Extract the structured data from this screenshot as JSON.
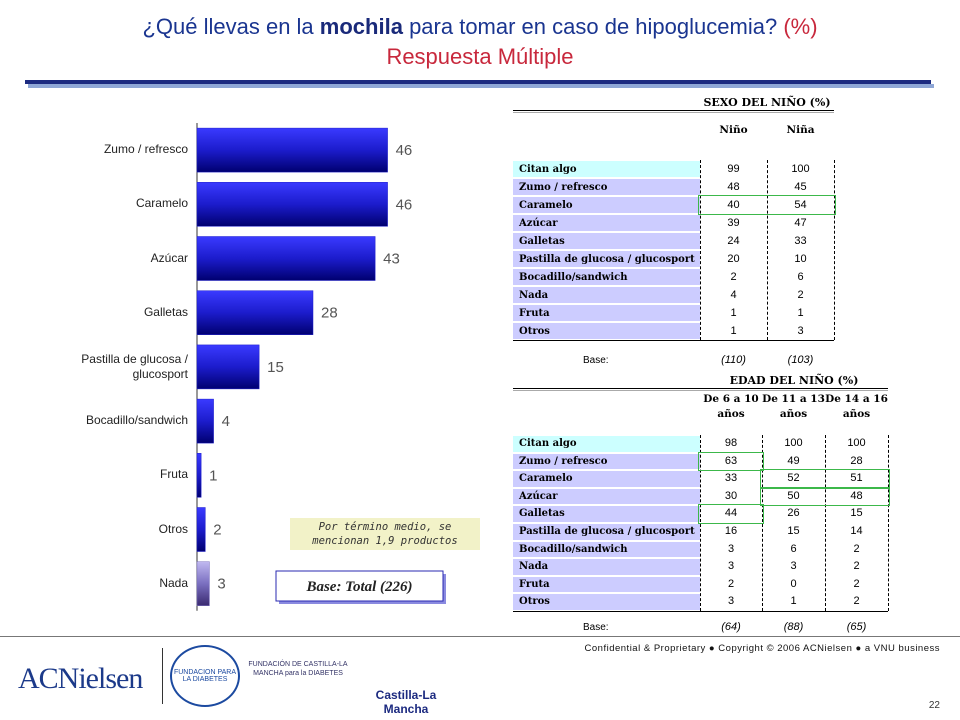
{
  "header": {
    "title_pre": "¿Qué llevas en la",
    "title_bold": "mochila",
    "title_post": "para tomar en caso de hipoglucemia?",
    "unit": "(%)",
    "subtitle": "Respuesta Múltiple"
  },
  "chart_data": {
    "type": "bar",
    "orientation": "horizontal",
    "categories": [
      "Zumo / refresco",
      "Caramelo",
      "Azúcar",
      "Galletas",
      "Pastilla de glucosa / glucosport",
      "Bocadillo/sandwich",
      "Fruta",
      "Otros",
      "Nada"
    ],
    "values": [
      46,
      46,
      43,
      28,
      15,
      4,
      1,
      2,
      3
    ],
    "colors": [
      "#1c1ccc",
      "#1c1ccc",
      "#1c1ccc",
      "#1c1ccc",
      "#1c1ccc",
      "#1c1ccc",
      "#1c1ccc",
      "#1c1ccc",
      "#7a6fc0"
    ],
    "xlim": [
      0,
      70
    ]
  },
  "note": "Por término medio, se mencionan 1,9 productos",
  "base": "Base: Total (226)",
  "table_sex": {
    "title": "SEXO DEL NIÑO (%)",
    "columns": [
      "Niño",
      "Niña"
    ],
    "rows": [
      [
        "Citan algo",
        99,
        100
      ],
      [
        "Zumo / refresco",
        48,
        45
      ],
      [
        "Caramelo",
        40,
        54
      ],
      [
        "Azúcar",
        39,
        47
      ],
      [
        "Galletas",
        24,
        33
      ],
      [
        "Pastilla de glucosa / glucosport",
        20,
        10
      ],
      [
        "Bocadillo/sandwich",
        2,
        6
      ],
      [
        "Nada",
        4,
        2
      ],
      [
        "Fruta",
        1,
        1
      ],
      [
        "Otros",
        1,
        3
      ]
    ],
    "base": [
      "Base:",
      "(110)",
      "(103)"
    ]
  },
  "table_age": {
    "title": "EDAD DEL NIÑO (%)",
    "columns": [
      "De 6 a 10 años",
      "De 11 a 13 años",
      "De 14 a 16 años"
    ],
    "rows": [
      [
        "Citan algo",
        98,
        100,
        100
      ],
      [
        "Zumo / refresco",
        63,
        49,
        28
      ],
      [
        "Caramelo",
        33,
        52,
        51
      ],
      [
        "Azúcar",
        30,
        50,
        48
      ],
      [
        "Galletas",
        44,
        26,
        15
      ],
      [
        "Pastilla de glucosa / glucosport",
        16,
        15,
        14
      ],
      [
        "Bocadillo/sandwich",
        3,
        6,
        2
      ],
      [
        "Nada",
        3,
        3,
        2
      ],
      [
        "Fruta",
        2,
        0,
        2
      ],
      [
        "Otros",
        3,
        1,
        2
      ]
    ],
    "base": [
      "Base:",
      "(64)",
      "(88)",
      "(65)"
    ]
  },
  "footer": {
    "confidential": "Confidential & Proprietary ● Copyright © 2006 ACNielsen ● a VNU business",
    "page": "22",
    "logos": [
      "ACNielsen",
      "FUNDACION PARA LA DIABETES",
      "FUNDACIÓN DE CASTILLA-LA MANCHA para la DIABETES",
      "Castilla-La Mancha"
    ]
  }
}
